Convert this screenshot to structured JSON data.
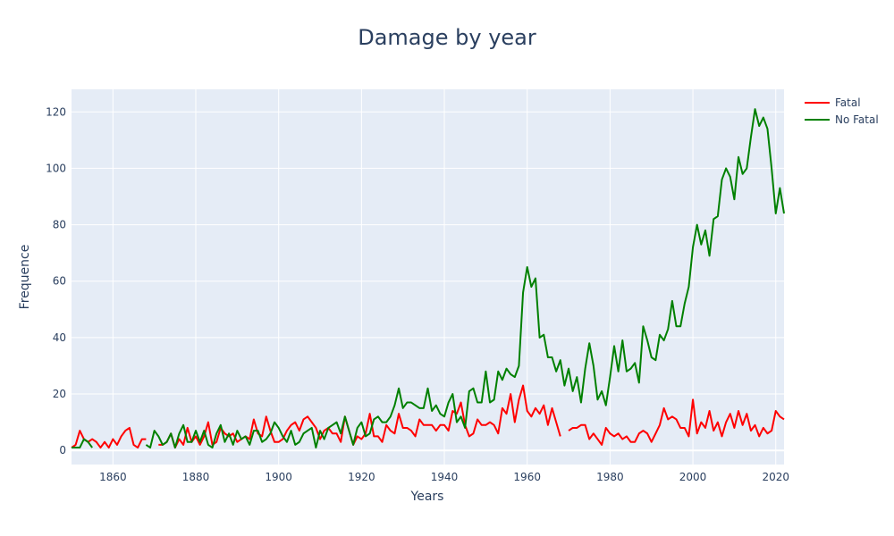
{
  "chart_data": {
    "type": "line",
    "title": "Damage by year",
    "xlabel": "Years",
    "ylabel": "Frequence",
    "xlim": [
      1850,
      2022
    ],
    "ylim": [
      -5,
      128
    ],
    "xticks": [
      1860,
      1880,
      1900,
      1920,
      1940,
      1960,
      1980,
      2000,
      2020
    ],
    "yticks": [
      0,
      20,
      40,
      60,
      80,
      100,
      120
    ],
    "grid": true,
    "plot_background": "#e5ecf6",
    "legend_position": "top-right",
    "series": [
      {
        "name": "Fatal",
        "color": "#ff0000",
        "x": [
          1850,
          1851,
          1852,
          1853,
          1854,
          1855,
          1856,
          1857,
          1858,
          1859,
          1860,
          1861,
          1862,
          1863,
          1864,
          1865,
          1866,
          1867,
          1868,
          null,
          1871,
          1872,
          1873,
          1874,
          1875,
          1876,
          1877,
          1878,
          1879,
          1880,
          1881,
          1882,
          1883,
          1884,
          1885,
          1886,
          1887,
          1888,
          1889,
          1890,
          1891,
          1892,
          1893,
          1894,
          1895,
          1896,
          1897,
          1898,
          1899,
          1900,
          1901,
          1902,
          1903,
          1904,
          1905,
          1906,
          1907,
          1908,
          1909,
          1910,
          1911,
          1912,
          1913,
          1914,
          1915,
          1916,
          1917,
          1918,
          1919,
          1920,
          1921,
          1922,
          1923,
          1924,
          1925,
          1926,
          1927,
          1928,
          1929,
          1930,
          1931,
          1932,
          1933,
          1934,
          1935,
          1936,
          1937,
          1938,
          1939,
          1940,
          1941,
          1942,
          1943,
          1944,
          1945,
          1946,
          1947,
          1948,
          1949,
          1950,
          1951,
          1952,
          1953,
          1954,
          1955,
          1956,
          1957,
          1958,
          1959,
          1960,
          1961,
          1962,
          1963,
          1964,
          1965,
          1966,
          1967,
          1968,
          null,
          1970,
          1971,
          1972,
          1973,
          1974,
          1975,
          1976,
          1977,
          1978,
          1979,
          1980,
          1981,
          1982,
          1983,
          1984,
          1985,
          1986,
          1987,
          1988,
          1989,
          1990,
          1991,
          1992,
          1993,
          1994,
          1995,
          1996,
          1997,
          1998,
          1999,
          2000,
          2001,
          2002,
          2003,
          2004,
          2005,
          2006,
          2007,
          2008,
          2009,
          2010,
          2011,
          2012,
          2013,
          2014,
          2015,
          2016,
          2017,
          2018,
          2019,
          2020,
          2021,
          2022
        ],
        "y": [
          1,
          2,
          7,
          4,
          3,
          4,
          3,
          1,
          3,
          1,
          4,
          2,
          5,
          7,
          8,
          2,
          1,
          4,
          4,
          null,
          2,
          2,
          3,
          6,
          1,
          4,
          2,
          8,
          3,
          5,
          2,
          5,
          10,
          2,
          3,
          8,
          6,
          5,
          6,
          3,
          4,
          5,
          4,
          11,
          6,
          5,
          12,
          7,
          3,
          3,
          4,
          7,
          9,
          10,
          7,
          11,
          12,
          10,
          8,
          4,
          7,
          8,
          6,
          6,
          3,
          12,
          7,
          2,
          5,
          4,
          6,
          13,
          5,
          5,
          3,
          9,
          7,
          6,
          13,
          8,
          8,
          7,
          5,
          11,
          9,
          9,
          9,
          7,
          9,
          9,
          7,
          14,
          13,
          17,
          9,
          5,
          6,
          11,
          9,
          9,
          10,
          9,
          6,
          15,
          13,
          20,
          10,
          18,
          23,
          14,
          12,
          15,
          13,
          16,
          9,
          15,
          10,
          5,
          null,
          7,
          8,
          8,
          9,
          9,
          4,
          6,
          4,
          2,
          8,
          6,
          5,
          6,
          4,
          5,
          3,
          3,
          6,
          7,
          6,
          3,
          6,
          9,
          15,
          11,
          12,
          11,
          8,
          8,
          5,
          18,
          6,
          10,
          8,
          14,
          7,
          10,
          5,
          10,
          13,
          8,
          14,
          9,
          13,
          7,
          9,
          5,
          8,
          6,
          7,
          14,
          12,
          11
        ]
      },
      {
        "name": "No Fatal",
        "color": "#008000",
        "x": [
          1850,
          1851,
          1852,
          1853,
          1854,
          1855,
          null,
          1868,
          1869,
          1870,
          1871,
          1872,
          1873,
          1874,
          1875,
          1876,
          1877,
          1878,
          1879,
          1880,
          1881,
          1882,
          1883,
          1884,
          1885,
          1886,
          1887,
          1888,
          1889,
          1890,
          1891,
          1892,
          1893,
          1894,
          1895,
          1896,
          1897,
          1898,
          1899,
          1900,
          1901,
          1902,
          1903,
          1904,
          1905,
          1906,
          1907,
          1908,
          1909,
          1910,
          1911,
          1912,
          1913,
          1914,
          1915,
          1916,
          1917,
          1918,
          1919,
          1920,
          1921,
          1922,
          1923,
          1924,
          1925,
          1926,
          1927,
          1928,
          1929,
          1930,
          1931,
          1932,
          1933,
          1934,
          1935,
          1936,
          1937,
          1938,
          1939,
          1940,
          1941,
          1942,
          1943,
          1944,
          1945,
          1946,
          1947,
          1948,
          1949,
          1950,
          1951,
          1952,
          1953,
          1954,
          1955,
          1956,
          1957,
          1958,
          1959,
          1960,
          1961,
          1962,
          1963,
          1964,
          1965,
          1966,
          1967,
          1968,
          1969,
          1970,
          1971,
          1972,
          1973,
          1974,
          1975,
          1976,
          1977,
          1978,
          1979,
          1980,
          1981,
          1982,
          1983,
          1984,
          1985,
          1986,
          1987,
          1988,
          1989,
          1990,
          1991,
          1992,
          1993,
          1994,
          1995,
          1996,
          1997,
          1998,
          1999,
          2000,
          2001,
          2002,
          2003,
          2004,
          2005,
          2006,
          2007,
          2008,
          2009,
          2010,
          2011,
          2012,
          2013,
          2014,
          2015,
          2016,
          2017,
          2018,
          2019,
          2020,
          2021,
          2022
        ],
        "y": [
          1,
          1,
          1,
          4,
          3,
          1,
          null,
          2,
          1,
          7,
          5,
          2,
          3,
          6,
          1,
          6,
          9,
          3,
          3,
          7,
          3,
          7,
          2,
          1,
          6,
          9,
          3,
          6,
          2,
          7,
          4,
          5,
          2,
          7,
          7,
          3,
          4,
          6,
          10,
          8,
          5,
          3,
          7,
          2,
          3,
          6,
          7,
          8,
          1,
          7,
          4,
          8,
          9,
          10,
          6,
          12,
          7,
          2,
          8,
          10,
          5,
          6,
          11,
          12,
          10,
          10,
          12,
          16,
          22,
          15,
          17,
          17,
          16,
          15,
          15,
          22,
          14,
          16,
          13,
          12,
          17,
          20,
          10,
          12,
          8,
          21,
          22,
          17,
          17,
          28,
          17,
          18,
          28,
          25,
          29,
          27,
          26,
          30,
          56,
          65,
          58,
          61,
          40,
          41,
          33,
          33,
          28,
          32,
          23,
          29,
          21,
          26,
          17,
          29,
          38,
          30,
          18,
          21,
          16,
          26,
          37,
          28,
          39,
          28,
          29,
          31,
          24,
          44,
          39,
          33,
          32,
          41,
          39,
          43,
          53,
          44,
          44,
          52,
          58,
          72,
          80,
          73,
          78,
          69,
          82,
          83,
          96,
          100,
          97,
          89,
          104,
          98,
          100,
          111,
          121,
          115,
          118,
          114,
          100,
          84,
          93,
          84
        ]
      }
    ]
  }
}
